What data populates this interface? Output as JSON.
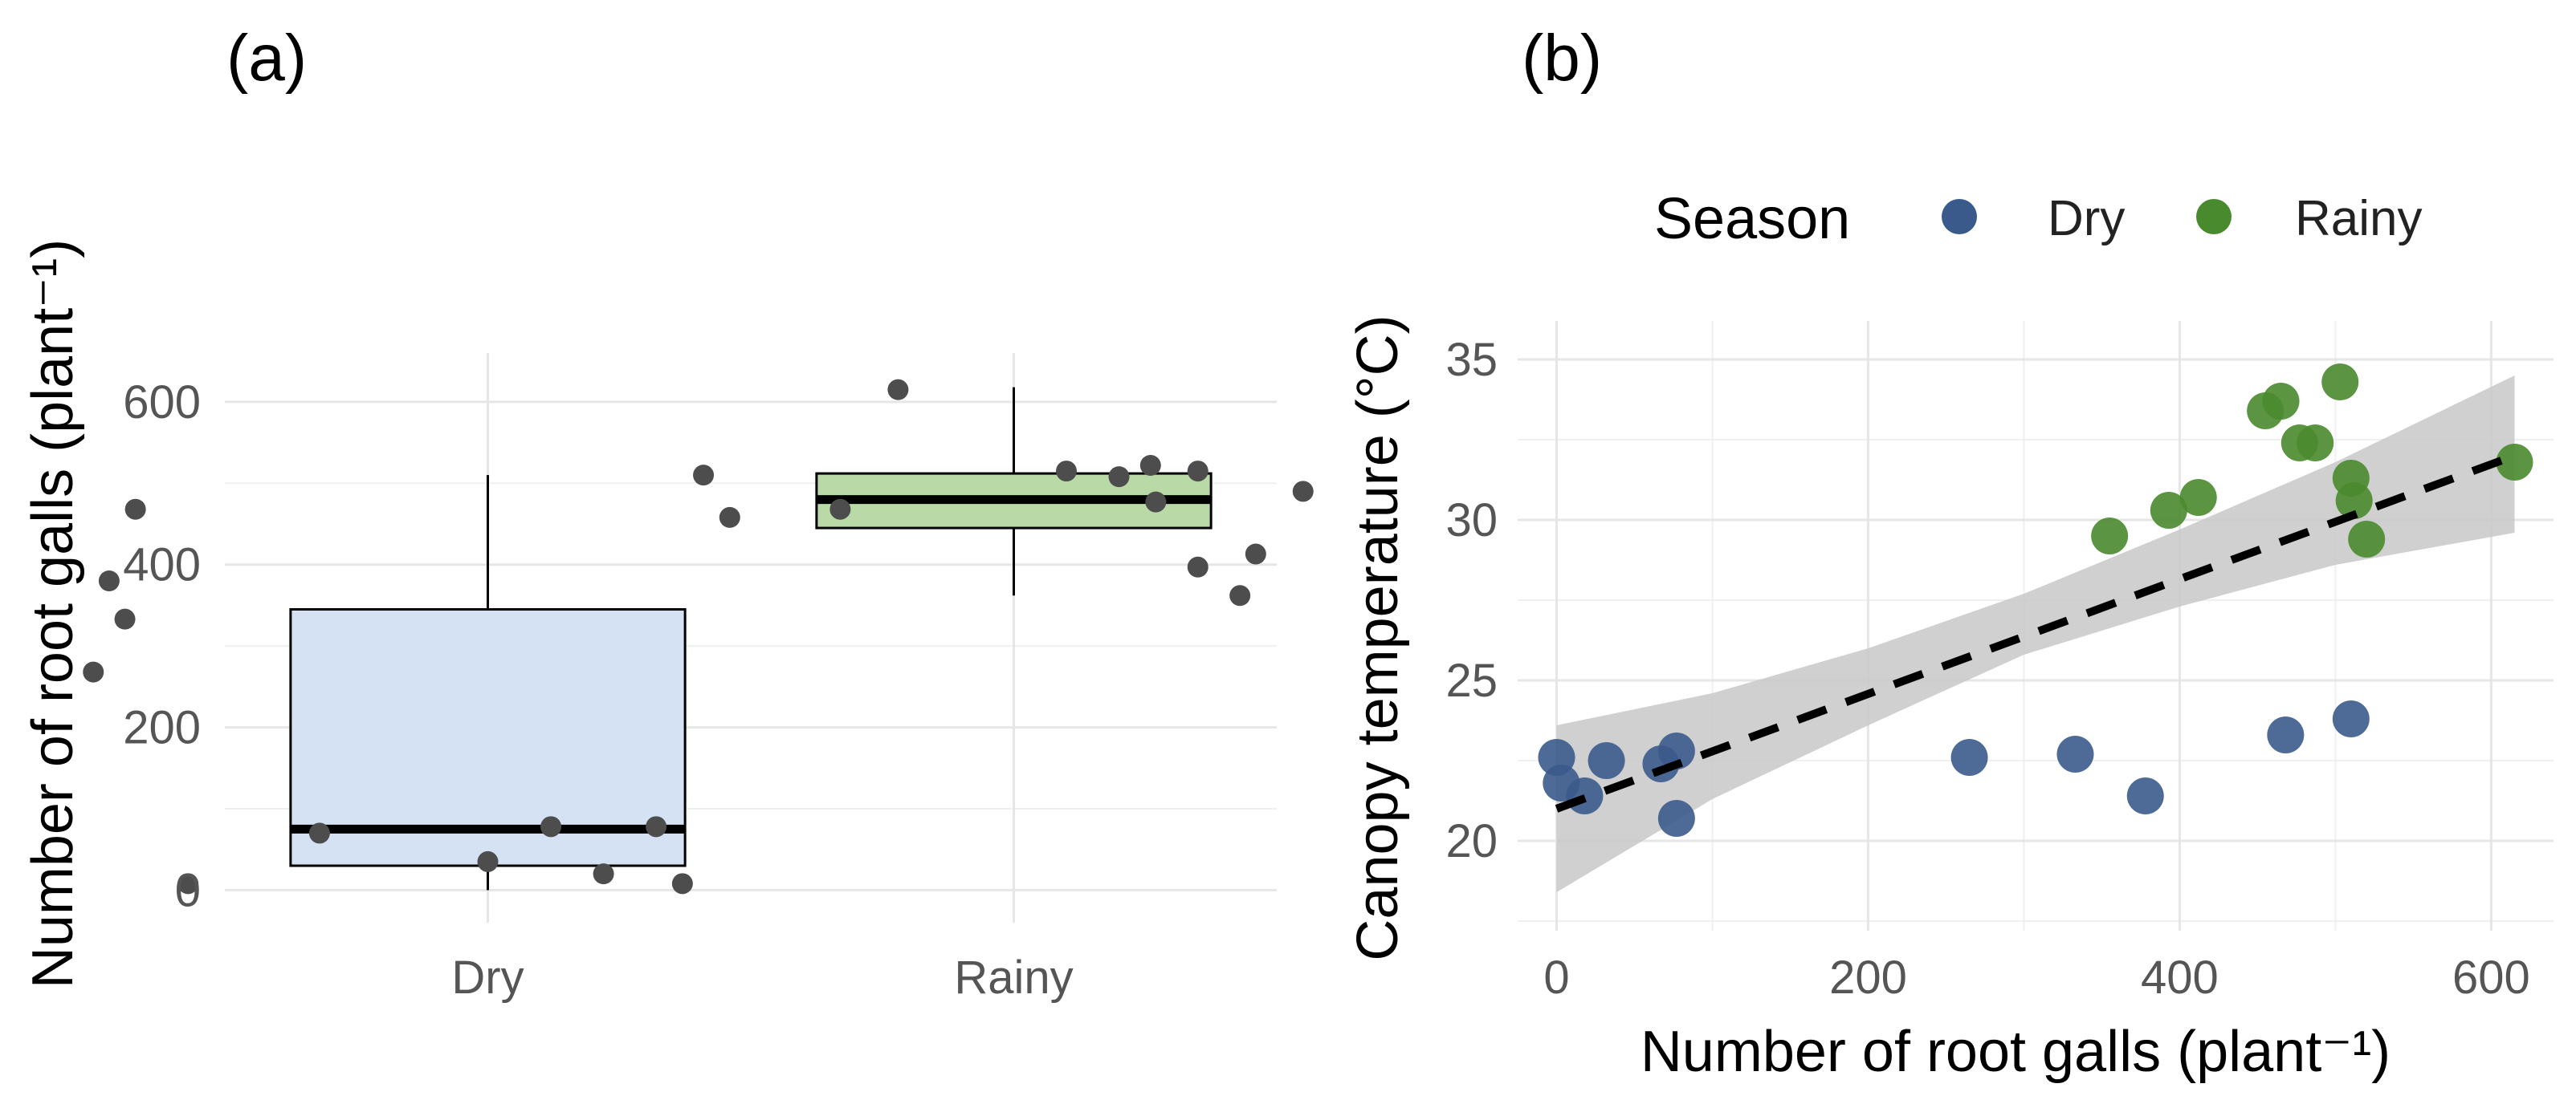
{
  "panels": {
    "a": {
      "tag": "(a)"
    },
    "b": {
      "tag": "(b)"
    }
  },
  "chart_data": [
    {
      "type": "box",
      "panel_tag": "(a)",
      "ylabel": "Number of root galls (plant⁻¹)",
      "xlabel": "",
      "categories": [
        "Dry",
        "Rainy"
      ],
      "ylim": [
        -40,
        660
      ],
      "yticks": [
        0,
        200,
        400,
        600
      ],
      "grid": true,
      "boxes": [
        {
          "category": "Dry",
          "fill": "#d4e2f4",
          "q1": 30,
          "median": 75,
          "q3": 345,
          "whisker_low": 0,
          "whisker_high": 510,
          "points": [
            {
              "x": -0.75,
              "y": 268
            },
            {
              "x": -0.72,
              "y": 380
            },
            {
              "x": -0.69,
              "y": 333
            },
            {
              "x": -0.67,
              "y": 468
            },
            {
              "x": -0.57,
              "y": 8
            },
            {
              "x": -0.32,
              "y": 70
            },
            {
              "x": 0.0,
              "y": 35
            },
            {
              "x": 0.12,
              "y": 78
            },
            {
              "x": 0.22,
              "y": 20
            },
            {
              "x": 0.32,
              "y": 78
            },
            {
              "x": 0.37,
              "y": 8
            }
          ]
        },
        {
          "category": "Rainy",
          "fill": "#b9d9a6",
          "q1": 445,
          "median": 480,
          "q3": 512,
          "whisker_low": 362,
          "whisker_high": 618,
          "points": [
            {
              "x": -0.59,
              "y": 510
            },
            {
              "x": -0.54,
              "y": 458
            },
            {
              "x": -0.33,
              "y": 468
            },
            {
              "x": -0.22,
              "y": 615
            },
            {
              "x": 0.1,
              "y": 515
            },
            {
              "x": 0.2,
              "y": 508
            },
            {
              "x": 0.26,
              "y": 522
            },
            {
              "x": 0.27,
              "y": 477
            },
            {
              "x": 0.35,
              "y": 515
            },
            {
              "x": 0.35,
              "y": 397
            },
            {
              "x": 0.43,
              "y": 362
            },
            {
              "x": 0.46,
              "y": 413
            },
            {
              "x": 0.55,
              "y": 490
            }
          ]
        }
      ]
    },
    {
      "type": "scatter",
      "panel_tag": "(b)",
      "xlabel": "Number of root galls (plant⁻¹)",
      "ylabel": "Canopy temperature (°C)",
      "xlim": [
        -25,
        640
      ],
      "ylim": [
        17.2,
        36.2
      ],
      "xticks": [
        0,
        200,
        400,
        600
      ],
      "yticks": [
        20,
        25,
        30,
        35
      ],
      "grid": true,
      "legend": {
        "title": "Season",
        "position": "top"
      },
      "series": [
        {
          "name": "Dry",
          "color": "#3b5a8c",
          "points": [
            [
              0,
              22.6
            ],
            [
              3,
              21.8
            ],
            [
              18,
              21.4
            ],
            [
              32,
              22.5
            ],
            [
              67,
              22.4
            ],
            [
              77,
              20.7
            ],
            [
              77,
              22.8
            ],
            [
              265,
              22.6
            ],
            [
              333,
              22.7
            ],
            [
              378,
              21.4
            ],
            [
              468,
              23.3
            ],
            [
              510,
              23.8
            ]
          ]
        },
        {
          "name": "Rainy",
          "color": "#4a8a2e",
          "points": [
            [
              355,
              29.5
            ],
            [
              393,
              30.3
            ],
            [
              412,
              30.7
            ],
            [
              455,
              33.4
            ],
            [
              465,
              33.7
            ],
            [
              477,
              32.4
            ],
            [
              487,
              32.4
            ],
            [
              503,
              34.3
            ],
            [
              510,
              31.3
            ],
            [
              512,
              30.6
            ],
            [
              520,
              29.4
            ],
            [
              615,
              31.8
            ]
          ]
        }
      ],
      "trend": {
        "style": "dashed",
        "color": "#000000",
        "x_start": 0,
        "y_start": 21.0,
        "x_end": 615,
        "y_end": 32.0
      },
      "confidence_band": {
        "color": "#c8c8c8",
        "lower": [
          [
            0,
            18.4
          ],
          [
            100,
            21.3
          ],
          [
            200,
            23.6
          ],
          [
            300,
            25.8
          ],
          [
            400,
            27.3
          ],
          [
            500,
            28.6
          ],
          [
            615,
            29.6
          ]
        ],
        "upper": [
          [
            0,
            23.6
          ],
          [
            100,
            24.6
          ],
          [
            200,
            26.0
          ],
          [
            300,
            27.7
          ],
          [
            400,
            29.7
          ],
          [
            500,
            31.8
          ],
          [
            615,
            34.5
          ]
        ]
      }
    }
  ]
}
